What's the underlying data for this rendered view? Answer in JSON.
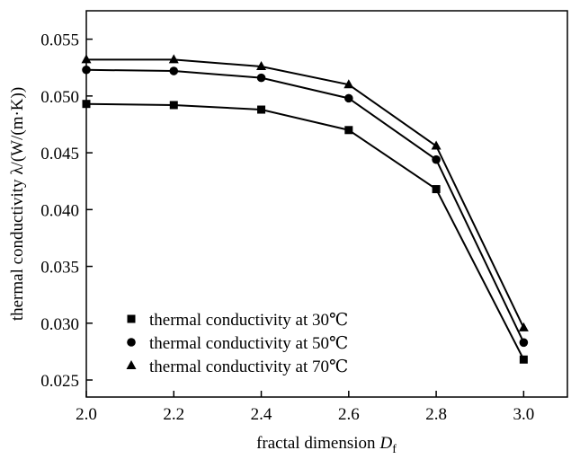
{
  "chart_data": {
    "type": "line",
    "title": "",
    "xlabel": "fractal dimension",
    "xlabel_symbol": "D",
    "xlabel_subscript": "f",
    "ylabel": "thermal conductivity λ/(W/(m·K))",
    "xlim": [
      2.0,
      3.1
    ],
    "ylim": [
      0.0235,
      0.0575
    ],
    "x_ticks": [
      2.0,
      2.2,
      2.4,
      2.6,
      2.8,
      3.0
    ],
    "x_tick_labels": [
      "2.0",
      "2.2",
      "2.4",
      "2.6",
      "2.8",
      "3.0"
    ],
    "y_ticks": [
      0.025,
      0.03,
      0.035,
      0.04,
      0.045,
      0.05,
      0.055
    ],
    "y_tick_labels": [
      "0.025",
      "0.030",
      "0.035",
      "0.040",
      "0.045",
      "0.050",
      "0.055"
    ],
    "grid": false,
    "legend_position": "bottom-left",
    "x": [
      2.0,
      2.2,
      2.4,
      2.6,
      2.8,
      3.0
    ],
    "series": [
      {
        "name": "thermal conductivity at 30℃",
        "marker": "square",
        "values": [
          0.0493,
          0.0492,
          0.0488,
          0.047,
          0.0418,
          0.0268
        ]
      },
      {
        "name": "thermal conductivity at 50℃",
        "marker": "circle",
        "values": [
          0.0523,
          0.0522,
          0.0516,
          0.0498,
          0.0444,
          0.0283
        ]
      },
      {
        "name": "thermal conductivity at 70℃",
        "marker": "triangle",
        "values": [
          0.0532,
          0.0532,
          0.0526,
          0.051,
          0.0456,
          0.0296
        ]
      }
    ]
  }
}
